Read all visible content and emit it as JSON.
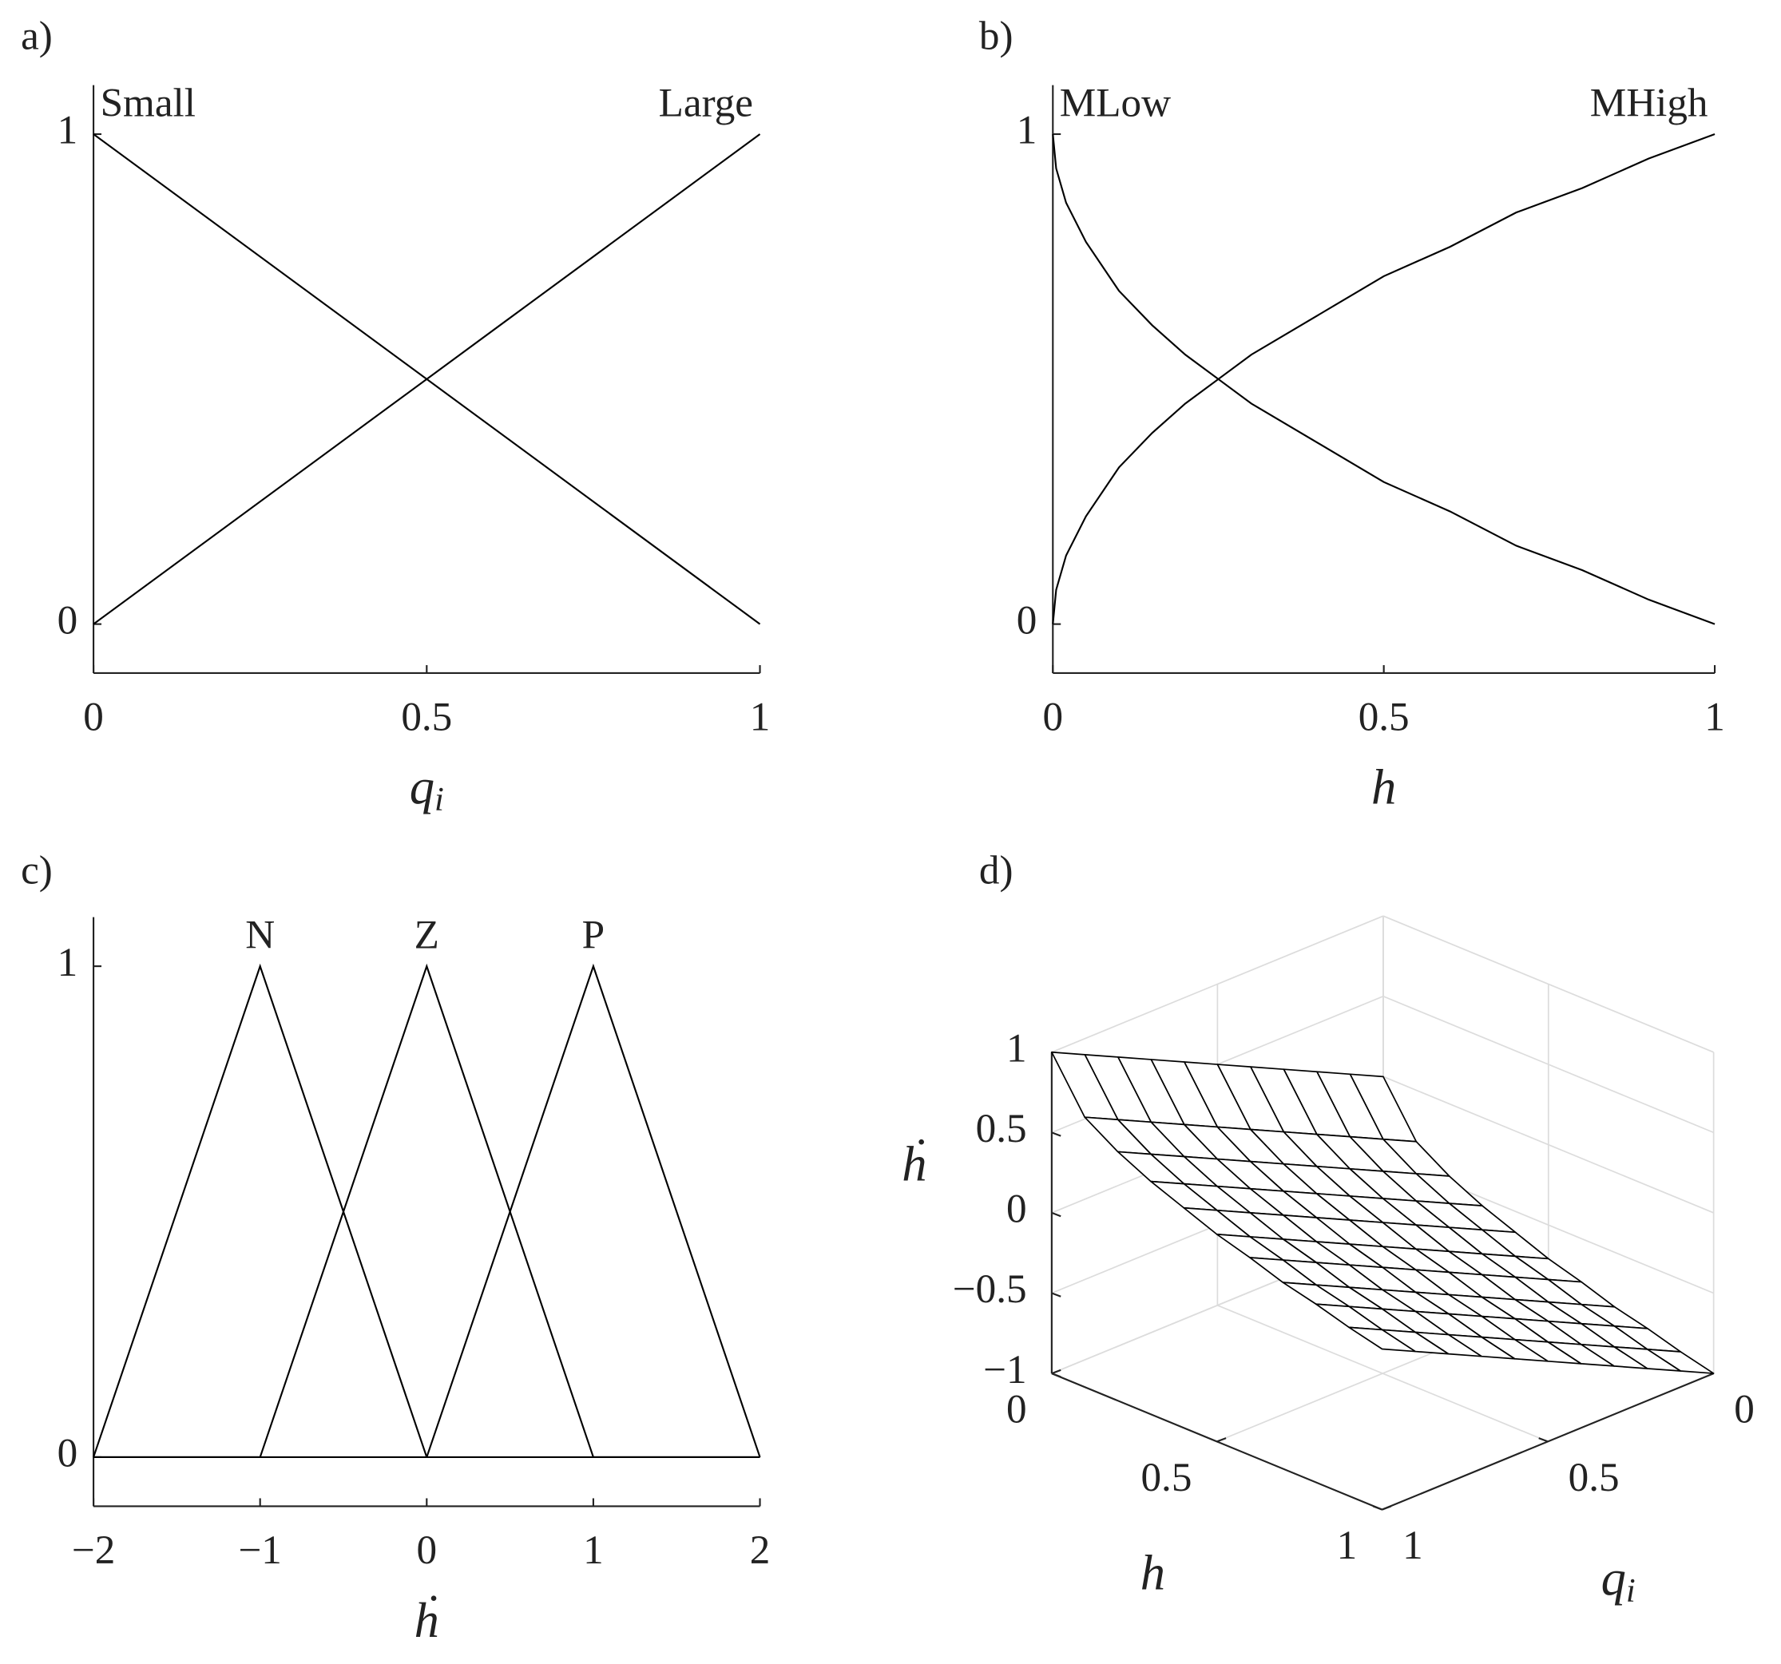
{
  "chart_data": [
    {
      "type": "line",
      "panel_label": "a)",
      "xlabel": {
        "base": "q",
        "sub": "i"
      },
      "x": [
        0,
        1
      ],
      "series": [
        {
          "name": "Small",
          "color": "#000000",
          "values": [
            1,
            0
          ]
        },
        {
          "name": "Large",
          "color": "#000000",
          "values": [
            0,
            1
          ]
        }
      ],
      "xlim": [
        0,
        1
      ],
      "xticks": [
        0,
        0.5,
        1
      ],
      "ylim": [
        -0.1,
        1.1
      ],
      "yticks": [
        0,
        1
      ]
    },
    {
      "type": "line",
      "panel_label": "b)",
      "xlabel": "h",
      "x": [
        0,
        0.005,
        0.02,
        0.05,
        0.1,
        0.15,
        0.2,
        0.25,
        0.3,
        0.4,
        0.5,
        0.6,
        0.7,
        0.8,
        0.9,
        1
      ],
      "series": [
        {
          "name": "MLow",
          "color": "#000000",
          "values": [
            1,
            0.93,
            0.86,
            0.78,
            0.68,
            0.61,
            0.55,
            0.5,
            0.45,
            0.37,
            0.29,
            0.23,
            0.16,
            0.11,
            0.05,
            0
          ]
        },
        {
          "name": "MHigh",
          "color": "#000000",
          "values": [
            0,
            0.07,
            0.14,
            0.22,
            0.32,
            0.39,
            0.45,
            0.5,
            0.55,
            0.63,
            0.71,
            0.77,
            0.84,
            0.89,
            0.95,
            1
          ]
        }
      ],
      "xlim": [
        0,
        1
      ],
      "xticks": [
        0,
        0.5,
        1
      ],
      "ylim": [
        -0.1,
        1.1
      ],
      "yticks": [
        0,
        1
      ]
    },
    {
      "type": "line",
      "panel_label": "c)",
      "xlabel": "ḣ",
      "series": [
        {
          "name": "N",
          "color": "#000000",
          "x": [
            -2,
            -1,
            0,
            2
          ],
          "values": [
            0,
            1,
            0,
            0
          ]
        },
        {
          "name": "Z",
          "color": "#000000",
          "x": [
            -2,
            -1,
            0,
            1,
            2
          ],
          "values": [
            0,
            0,
            1,
            0,
            0
          ]
        },
        {
          "name": "P",
          "color": "#000000",
          "x": [
            -2,
            0,
            1,
            2
          ],
          "values": [
            0,
            0,
            1,
            0
          ]
        }
      ],
      "xlim": [
        -2,
        2
      ],
      "xticks": [
        {
          "value": -2,
          "label": "−2"
        },
        {
          "value": -1,
          "label": "−1"
        },
        0,
        1,
        2
      ],
      "ylim": [
        -0.1,
        1.1
      ],
      "yticks": [
        0,
        1
      ]
    },
    {
      "type": "surface",
      "panel_label": "d)",
      "xlabel": "h",
      "ylabel": {
        "base": "q",
        "sub": "i"
      },
      "zlabel": "ḣ",
      "x": [
        0,
        0.1,
        0.2,
        0.3,
        0.4,
        0.5,
        0.6,
        0.7,
        0.8,
        0.9,
        1
      ],
      "y": [
        0,
        0.1,
        0.2,
        0.3,
        0.4,
        0.5,
        0.6,
        0.7,
        0.8,
        0.9,
        1
      ],
      "z": [
        [
          0,
          0.1,
          0.2,
          0.3,
          0.4,
          0.5,
          0.6,
          0.7,
          0.8,
          0.9,
          1
        ],
        [
          -0.32,
          -0.22,
          -0.12,
          -0.02,
          0.08,
          0.18,
          0.28,
          0.38,
          0.48,
          0.58,
          0.68
        ],
        [
          -0.45,
          -0.35,
          -0.25,
          -0.15,
          -0.05,
          0.05,
          0.15,
          0.25,
          0.35,
          0.45,
          0.55
        ],
        [
          -0.55,
          -0.45,
          -0.35,
          -0.25,
          -0.15,
          -0.05,
          0.05,
          0.15,
          0.25,
          0.35,
          0.45
        ],
        [
          -0.63,
          -0.53,
          -0.43,
          -0.33,
          -0.23,
          -0.13,
          -0.03,
          0.07,
          0.17,
          0.27,
          0.37
        ],
        [
          -0.71,
          -0.61,
          -0.51,
          -0.41,
          -0.31,
          -0.21,
          -0.11,
          -0.01,
          0.09,
          0.19,
          0.29
        ],
        [
          -0.77,
          -0.67,
          -0.57,
          -0.47,
          -0.37,
          -0.27,
          -0.17,
          -0.07,
          0.03,
          0.13,
          0.23
        ],
        [
          -0.84,
          -0.74,
          -0.64,
          -0.54,
          -0.44,
          -0.34,
          -0.24,
          -0.14,
          -0.04,
          0.06,
          0.16
        ],
        [
          -0.89,
          -0.79,
          -0.69,
          -0.59,
          -0.49,
          -0.39,
          -0.29,
          -0.19,
          -0.09,
          0.01,
          0.11
        ],
        [
          -0.95,
          -0.85,
          -0.75,
          -0.65,
          -0.55,
          -0.45,
          -0.35,
          -0.25,
          -0.15,
          -0.05,
          0.05
        ],
        [
          -1,
          -0.9,
          -0.8,
          -0.7,
          -0.6,
          -0.5,
          -0.4,
          -0.3,
          -0.2,
          -0.1,
          0
        ]
      ],
      "xlim": [
        0,
        1
      ],
      "xticks": [
        0,
        0.5,
        1
      ],
      "ylim": [
        0,
        1
      ],
      "yticks": [
        0,
        0.5,
        1
      ],
      "zlim": [
        -1,
        1
      ],
      "zticks": [
        {
          "value": -1,
          "label": "−1"
        },
        {
          "value": -0.5,
          "label": "−0.5"
        },
        0,
        0.5,
        1
      ]
    }
  ]
}
